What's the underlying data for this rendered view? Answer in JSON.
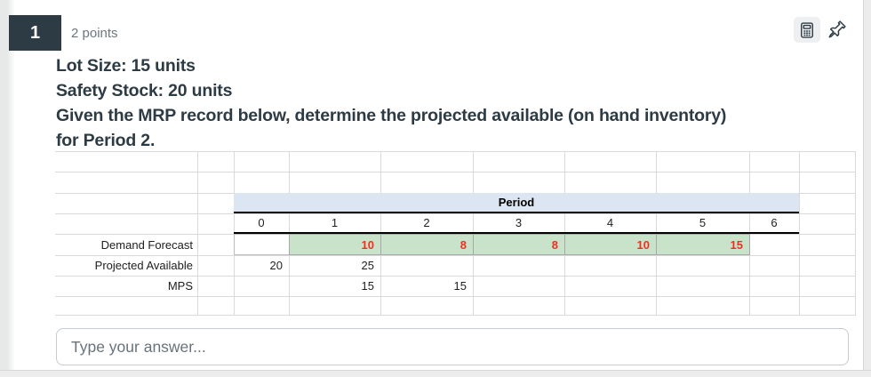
{
  "question": {
    "number": "1",
    "points": "2 points",
    "text_lines": [
      "Lot Size: 15 units",
      "Safety Stock: 20 units",
      "Given the MRP record below, determine the projected available (on hand inventory)",
      "for Period 2."
    ]
  },
  "toolbar": {
    "calculator_icon": "calculator-icon",
    "pin_icon": "pushpin-icon"
  },
  "mrp_table": {
    "header": "Period",
    "periods": [
      "0",
      "1",
      "2",
      "3",
      "4",
      "5",
      "6"
    ],
    "row_labels": [
      "Demand Forecast",
      "Projected Available",
      "MPS"
    ],
    "demand_forecast": [
      "",
      "10",
      "8",
      "8",
      "10",
      "15",
      ""
    ],
    "projected_available": [
      "20",
      "25",
      "",
      "",
      "",
      "",
      ""
    ],
    "mps": [
      "",
      "15",
      "15",
      "",
      "",
      "",
      ""
    ]
  },
  "answer": {
    "placeholder": "Type your answer...",
    "value": ""
  },
  "colors": {
    "accent_dark": "#2D3B45",
    "muted_text": "#6B7780",
    "table_blue": "#DCE6F2",
    "table_green": "#C9E3CA",
    "table_red": "#F02F21"
  }
}
